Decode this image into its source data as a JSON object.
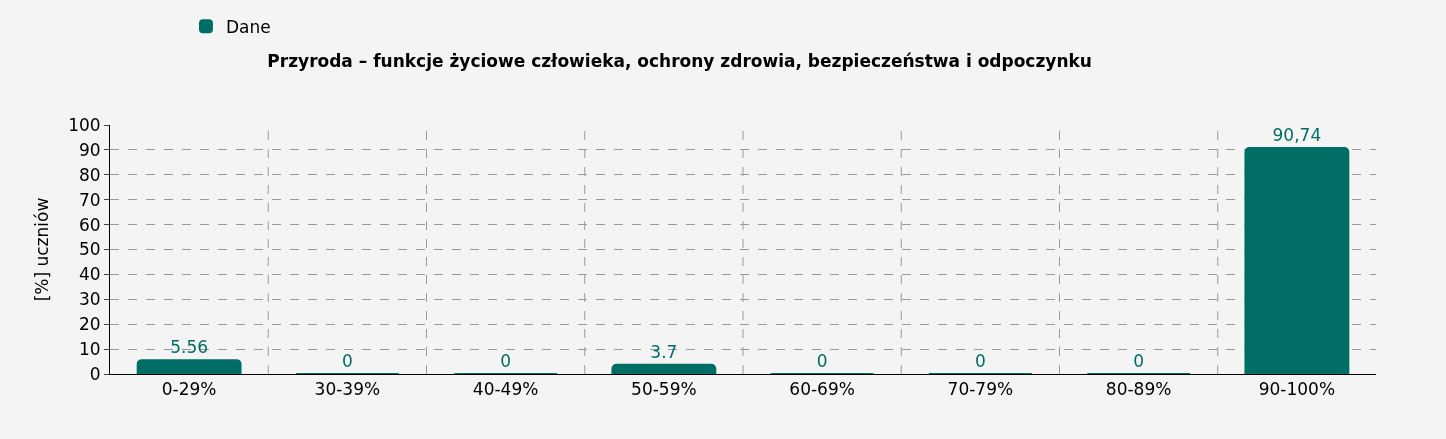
{
  "chart_data": {
    "type": "bar",
    "title": "Przyroda – funkcje życiowe człowieka, ochrony zdrowia, bezpieczeństwa i odpoczynku",
    "ylabel": "[%] uczniów",
    "categories": [
      "0-29%",
      "30-39%",
      "40-49%",
      "50-59%",
      "60-69%",
      "70-79%",
      "80-89%",
      "90-100%"
    ],
    "series": [
      {
        "name": "Dane",
        "color": "#006e64",
        "values": [
          5.56,
          0,
          0,
          3.7,
          0,
          0,
          0,
          90.74
        ],
        "value_labels": [
          "5.56",
          "0",
          "0",
          "3.7",
          "0",
          "0",
          "0",
          "90,74"
        ]
      }
    ],
    "ylim": [
      0,
      100
    ],
    "yticks": [
      0,
      10,
      20,
      30,
      40,
      50,
      60,
      70,
      80,
      90,
      100
    ],
    "grid": true,
    "legend": "top left"
  }
}
